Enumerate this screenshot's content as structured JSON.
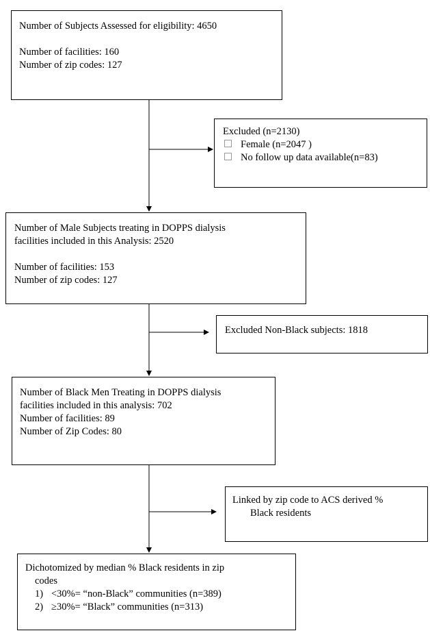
{
  "boxes": {
    "assessed": {
      "line1": "Number of Subjects Assessed for eligibility: 4650",
      "line2": "Number of facilities: 160",
      "line3": "Number of zip codes: 127"
    },
    "excluded1": {
      "title": "Excluded (n=2130)",
      "items": [
        "Female (n=2047 )",
        "No follow up data available(n=83)"
      ]
    },
    "male": {
      "line1": "Number of Male Subjects treating in DOPPS dialysis",
      "line2": "facilities included in this Analysis: 2520",
      "line3": "Number of facilities: 153",
      "line4": "Number of zip codes: 127"
    },
    "excluded2": {
      "text": "Excluded Non-Black subjects: 1818"
    },
    "black_men": {
      "line1": "Number of Black Men Treating in DOPPS dialysis",
      "line2": "facilities included in this analysis:  702",
      "line3": "Number of facilities: 89",
      "line4": "Number of Zip Codes: 80"
    },
    "linked": {
      "line1": "Linked by zip code to ACS derived %",
      "line2": "Black residents"
    },
    "dichotomized": {
      "line1": "Dichotomized by median % Black residents in zip",
      "line2": "codes",
      "items": [
        {
          "num": "1)",
          "text": "<30%= “non-Black” communities (n=389)"
        },
        {
          "num": "2)",
          "text": "≥30%= “Black” communities (n=313)"
        }
      ]
    }
  }
}
